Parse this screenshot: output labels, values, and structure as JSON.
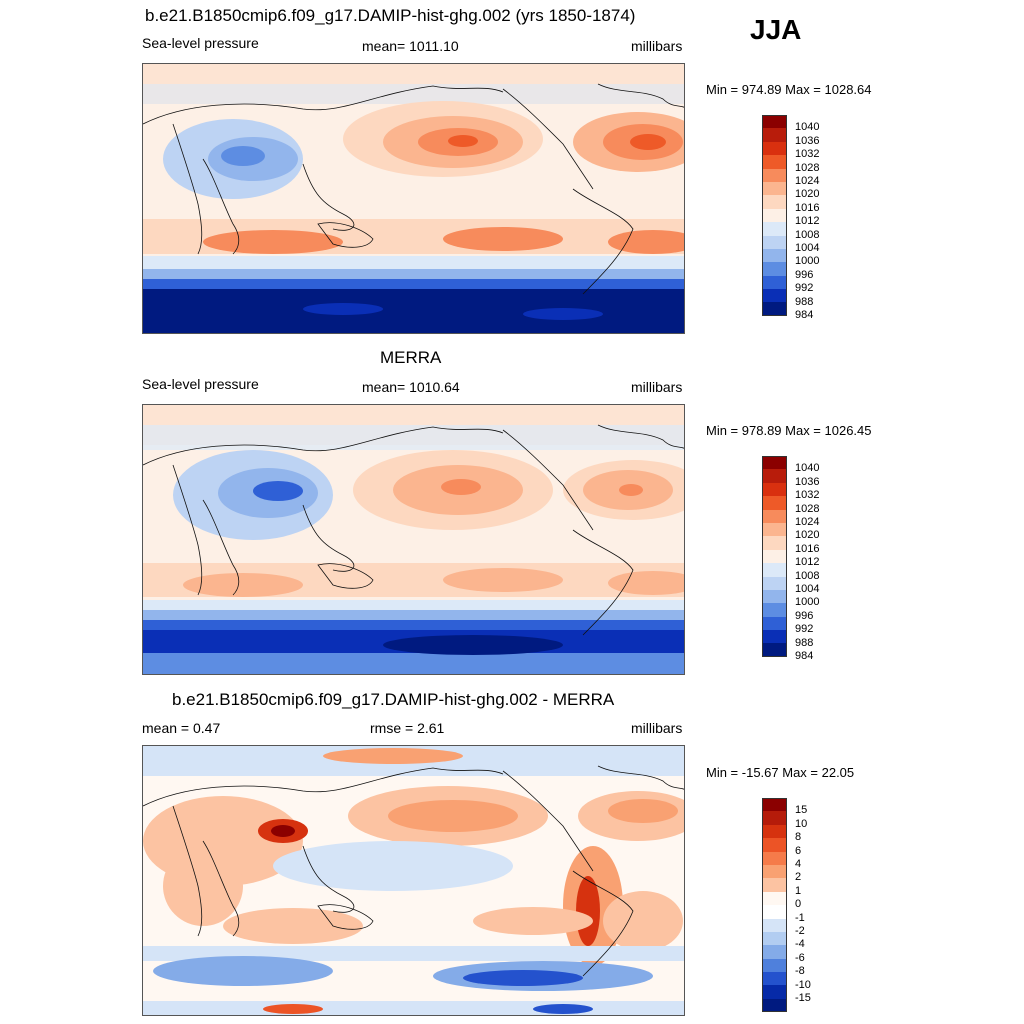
{
  "season": "JJA",
  "panels": [
    {
      "title": "b.e21.B1850cmip6.f09_g17.DAMIP-hist-ghg.002 (yrs 1850-1874)",
      "left_label": "Sea-level pressure",
      "center_label": "mean= 1011.10",
      "right_label": "millibars",
      "minmax": "Min = 974.89 Max = 1028.64"
    },
    {
      "title": "MERRA",
      "left_label": "Sea-level pressure",
      "center_label": "mean= 1010.64",
      "right_label": "millibars",
      "minmax": "Min = 978.89 Max = 1026.45"
    },
    {
      "title": "b.e21.B1850cmip6.f09_g17.DAMIP-hist-ghg.002 - MERRA",
      "left_label": "mean =   0.47",
      "center_label": "rmse =   2.61",
      "right_label": "millibars",
      "minmax": "Min = -15.67 Max =  22.05"
    }
  ],
  "chart_data": [
    {
      "type": "heatmap",
      "title": "b.e21.B1850cmip6.f09_g17.DAMIP-hist-ghg.002 (yrs 1850-1874)",
      "variable": "Sea-level pressure",
      "units": "millibars",
      "mean": 1011.1,
      "min": 974.89,
      "max": 1028.64,
      "colorbar_levels": [
        "1040",
        "1036",
        "1032",
        "1028",
        "1024",
        "1020",
        "1016",
        "1012",
        "1008",
        "1004",
        "1000",
        "996",
        "992",
        "988",
        "984"
      ],
      "colorbar_colors": [
        "#8b0000",
        "#b81c0b",
        "#d9300f",
        "#ee5a28",
        "#f78b5c",
        "#fbb58f",
        "#fdd8c0",
        "#fdf0e6",
        "#dce9f8",
        "#bdd3f3",
        "#92b5ec",
        "#5d8de2",
        "#2f60d6",
        "#0a2fb6",
        "#001a80"
      ]
    },
    {
      "type": "heatmap",
      "title": "MERRA",
      "variable": "Sea-level pressure",
      "units": "millibars",
      "mean": 1010.64,
      "min": 978.89,
      "max": 1026.45,
      "colorbar_levels": [
        "1040",
        "1036",
        "1032",
        "1028",
        "1024",
        "1020",
        "1016",
        "1012",
        "1008",
        "1004",
        "1000",
        "996",
        "992",
        "988",
        "984"
      ],
      "colorbar_colors": [
        "#8b0000",
        "#b81c0b",
        "#d9300f",
        "#ee5a28",
        "#f78b5c",
        "#fbb58f",
        "#fdd8c0",
        "#fdf0e6",
        "#dce9f8",
        "#bdd3f3",
        "#92b5ec",
        "#5d8de2",
        "#2f60d6",
        "#0a2fb6",
        "#001a80"
      ]
    },
    {
      "type": "heatmap",
      "title": "b.e21.B1850cmip6.f09_g17.DAMIP-hist-ghg.002 - MERRA",
      "units": "millibars",
      "mean": 0.47,
      "rmse": 2.61,
      "min": -15.67,
      "max": 22.05,
      "colorbar_levels": [
        "15",
        "10",
        "8",
        "6",
        "4",
        "2",
        "1",
        "0",
        "-1",
        "-2",
        "-4",
        "-6",
        "-8",
        "-10",
        "-15"
      ],
      "colorbar_colors": [
        "#8b0000",
        "#b51b0a",
        "#d6320f",
        "#ec5426",
        "#f57b4a",
        "#f9a172",
        "#fcc3a2",
        "#fff8f2",
        "#ffffff",
        "#d5e4f7",
        "#b2cdf1",
        "#84abe8",
        "#4f80dc",
        "#2452cd",
        "#062aa8",
        "#001a80"
      ]
    }
  ]
}
